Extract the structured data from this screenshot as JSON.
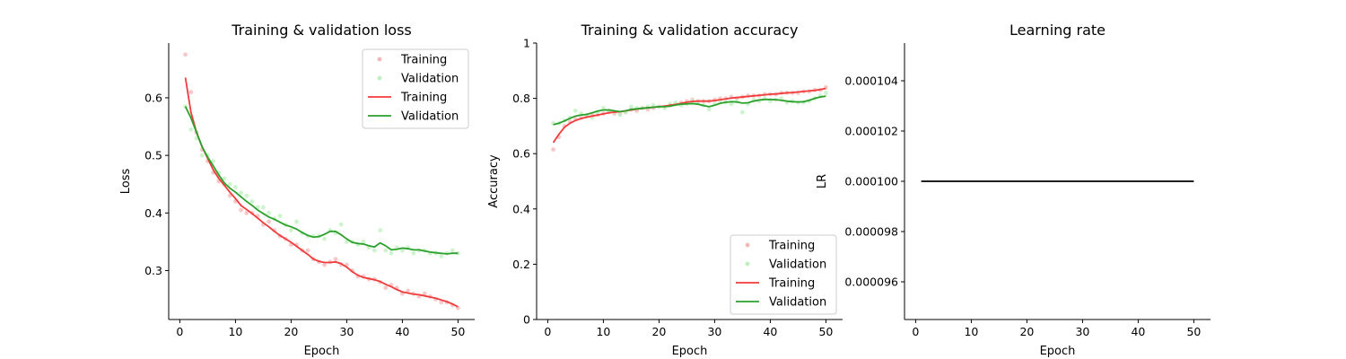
{
  "figure": {
    "colors": {
      "training_marker": "#f4b6b6",
      "validation_marker": "#bdf0bd",
      "training_line": "#f03c3c",
      "validation_line": "#2ca02c",
      "lr_line": "#000000"
    }
  },
  "chart_data": [
    {
      "type": "line",
      "title": "Training & validation loss",
      "xlabel": "Epoch",
      "ylabel": "Loss",
      "xlim": [
        -2,
        53
      ],
      "ylim": [
        0.215,
        0.695
      ],
      "xticks": [
        0,
        10,
        20,
        30,
        40,
        50
      ],
      "yticks": [
        0.3,
        0.4,
        0.5,
        0.6
      ],
      "x": [
        1,
        2,
        3,
        4,
        5,
        6,
        7,
        8,
        9,
        10,
        11,
        12,
        13,
        14,
        15,
        16,
        17,
        18,
        19,
        20,
        21,
        22,
        23,
        24,
        25,
        26,
        27,
        28,
        29,
        30,
        31,
        32,
        33,
        34,
        35,
        36,
        37,
        38,
        39,
        40,
        41,
        42,
        43,
        44,
        45,
        46,
        47,
        48,
        49,
        50
      ],
      "legend": {
        "position": "top-right",
        "entries": [
          {
            "label": "Training",
            "style": "marker",
            "color": "#f4b6b6"
          },
          {
            "label": "Validation",
            "style": "marker",
            "color": "#bdf0bd"
          },
          {
            "label": "Training",
            "style": "line",
            "color": "#f03c3c"
          },
          {
            "label": "Validation",
            "style": "line",
            "color": "#2ca02c"
          }
        ]
      },
      "series": [
        {
          "name": "Training",
          "style": "marker",
          "color": "#f4b6b6",
          "values": [
            0.675,
            0.61,
            0.54,
            0.51,
            0.49,
            0.47,
            0.455,
            0.45,
            0.43,
            0.42,
            0.405,
            0.4,
            0.4,
            0.395,
            0.38,
            0.385,
            0.37,
            0.36,
            0.355,
            0.345,
            0.345,
            0.335,
            0.335,
            0.32,
            0.315,
            0.31,
            0.315,
            0.32,
            0.31,
            0.31,
            0.3,
            0.29,
            0.29,
            0.285,
            0.285,
            0.28,
            0.27,
            0.275,
            0.27,
            0.26,
            0.265,
            0.26,
            0.255,
            0.26,
            0.255,
            0.25,
            0.245,
            0.245,
            0.24,
            0.235
          ]
        },
        {
          "name": "Validation",
          "style": "marker",
          "color": "#bdf0bd",
          "values": [
            0.585,
            0.545,
            0.53,
            0.5,
            0.5,
            0.49,
            0.47,
            0.46,
            0.45,
            0.445,
            0.435,
            0.43,
            0.42,
            0.41,
            0.41,
            0.4,
            0.39,
            0.395,
            0.38,
            0.37,
            0.385,
            0.365,
            0.36,
            0.36,
            0.36,
            0.355,
            0.37,
            0.365,
            0.38,
            0.35,
            0.35,
            0.345,
            0.35,
            0.34,
            0.335,
            0.37,
            0.335,
            0.33,
            0.34,
            0.335,
            0.34,
            0.33,
            0.335,
            0.335,
            0.33,
            0.33,
            0.325,
            0.33,
            0.335,
            0.33
          ]
        },
        {
          "name": "Training",
          "style": "line",
          "color": "#f03c3c",
          "values": [
            0.635,
            0.575,
            0.54,
            0.515,
            0.495,
            0.475,
            0.46,
            0.448,
            0.436,
            0.425,
            0.413,
            0.406,
            0.399,
            0.391,
            0.383,
            0.376,
            0.368,
            0.361,
            0.355,
            0.349,
            0.342,
            0.335,
            0.328,
            0.32,
            0.316,
            0.314,
            0.314,
            0.315,
            0.312,
            0.306,
            0.298,
            0.292,
            0.288,
            0.286,
            0.284,
            0.281,
            0.276,
            0.272,
            0.267,
            0.263,
            0.261,
            0.259,
            0.258,
            0.256,
            0.254,
            0.252,
            0.249,
            0.246,
            0.242,
            0.237
          ]
        },
        {
          "name": "Validation",
          "style": "line",
          "color": "#2ca02c",
          "values": [
            0.585,
            0.565,
            0.54,
            0.515,
            0.497,
            0.482,
            0.466,
            0.452,
            0.443,
            0.436,
            0.428,
            0.42,
            0.413,
            0.405,
            0.399,
            0.393,
            0.389,
            0.384,
            0.379,
            0.376,
            0.372,
            0.366,
            0.361,
            0.358,
            0.359,
            0.363,
            0.368,
            0.368,
            0.362,
            0.355,
            0.349,
            0.347,
            0.346,
            0.343,
            0.341,
            0.348,
            0.343,
            0.336,
            0.337,
            0.339,
            0.338,
            0.336,
            0.336,
            0.334,
            0.332,
            0.331,
            0.33,
            0.329,
            0.33,
            0.33
          ]
        }
      ]
    },
    {
      "type": "line",
      "title": "Training & validation accuracy",
      "xlabel": "Epoch",
      "ylabel": "Accuracy",
      "xlim": [
        -2,
        53
      ],
      "ylim": [
        0.0,
        1.0
      ],
      "xticks": [
        0,
        10,
        20,
        30,
        40,
        50
      ],
      "yticks": [
        0.0,
        0.2,
        0.4,
        0.6,
        0.8,
        1.0
      ],
      "x": [
        1,
        2,
        3,
        4,
        5,
        6,
        7,
        8,
        9,
        10,
        11,
        12,
        13,
        14,
        15,
        16,
        17,
        18,
        19,
        20,
        21,
        22,
        23,
        24,
        25,
        26,
        27,
        28,
        29,
        30,
        31,
        32,
        33,
        34,
        35,
        36,
        37,
        38,
        39,
        40,
        41,
        42,
        43,
        44,
        45,
        46,
        47,
        48,
        49,
        50
      ],
      "legend": {
        "position": "bottom-right",
        "entries": [
          {
            "label": "Training",
            "style": "marker",
            "color": "#f4b6b6"
          },
          {
            "label": "Validation",
            "style": "marker",
            "color": "#bdf0bd"
          },
          {
            "label": "Training",
            "style": "line",
            "color": "#f03c3c"
          },
          {
            "label": "Validation",
            "style": "line",
            "color": "#2ca02c"
          }
        ]
      },
      "series": [
        {
          "name": "Training",
          "style": "marker",
          "color": "#f4b6b6",
          "values": [
            0.615,
            0.66,
            0.7,
            0.715,
            0.725,
            0.73,
            0.735,
            0.74,
            0.74,
            0.745,
            0.75,
            0.745,
            0.745,
            0.75,
            0.76,
            0.755,
            0.765,
            0.76,
            0.765,
            0.77,
            0.77,
            0.775,
            0.78,
            0.785,
            0.79,
            0.795,
            0.79,
            0.79,
            0.79,
            0.795,
            0.8,
            0.8,
            0.805,
            0.8,
            0.805,
            0.81,
            0.81,
            0.81,
            0.815,
            0.815,
            0.815,
            0.82,
            0.82,
            0.82,
            0.82,
            0.825,
            0.825,
            0.83,
            0.83,
            0.84
          ]
        },
        {
          "name": "Validation",
          "style": "marker",
          "color": "#bdf0bd",
          "values": [
            0.71,
            0.71,
            0.72,
            0.73,
            0.755,
            0.745,
            0.74,
            0.73,
            0.75,
            0.765,
            0.755,
            0.75,
            0.74,
            0.75,
            0.77,
            0.765,
            0.765,
            0.77,
            0.775,
            0.77,
            0.765,
            0.78,
            0.785,
            0.775,
            0.78,
            0.79,
            0.785,
            0.775,
            0.76,
            0.78,
            0.79,
            0.785,
            0.78,
            0.79,
            0.75,
            0.78,
            0.795,
            0.79,
            0.8,
            0.79,
            0.795,
            0.8,
            0.785,
            0.79,
            0.785,
            0.785,
            0.79,
            0.8,
            0.81,
            0.82
          ]
        },
        {
          "name": "Training",
          "style": "line",
          "color": "#f03c3c",
          "values": [
            0.64,
            0.67,
            0.695,
            0.71,
            0.72,
            0.727,
            0.732,
            0.736,
            0.74,
            0.744,
            0.748,
            0.75,
            0.752,
            0.755,
            0.758,
            0.761,
            0.764,
            0.766,
            0.768,
            0.77,
            0.772,
            0.775,
            0.778,
            0.782,
            0.786,
            0.789,
            0.79,
            0.79,
            0.79,
            0.792,
            0.795,
            0.798,
            0.801,
            0.803,
            0.805,
            0.807,
            0.809,
            0.811,
            0.813,
            0.815,
            0.816,
            0.818,
            0.82,
            0.821,
            0.823,
            0.825,
            0.827,
            0.829,
            0.832,
            0.836
          ]
        },
        {
          "name": "Validation",
          "style": "line",
          "color": "#2ca02c",
          "values": [
            0.705,
            0.71,
            0.718,
            0.728,
            0.736,
            0.74,
            0.742,
            0.748,
            0.754,
            0.758,
            0.758,
            0.755,
            0.752,
            0.755,
            0.76,
            0.762,
            0.764,
            0.766,
            0.768,
            0.77,
            0.77,
            0.772,
            0.776,
            0.779,
            0.78,
            0.781,
            0.779,
            0.774,
            0.77,
            0.775,
            0.782,
            0.786,
            0.788,
            0.787,
            0.783,
            0.784,
            0.79,
            0.794,
            0.796,
            0.796,
            0.795,
            0.793,
            0.79,
            0.788,
            0.787,
            0.788,
            0.793,
            0.8,
            0.805,
            0.808
          ]
        }
      ]
    },
    {
      "type": "line",
      "title": "Learning rate",
      "xlabel": "Epoch",
      "ylabel": "LR",
      "xlim": [
        -2,
        53
      ],
      "ylim": [
        9.45e-05,
        0.0001055
      ],
      "xticks": [
        0,
        10,
        20,
        30,
        40,
        50
      ],
      "yticks": [
        9.6e-05,
        9.8e-05,
        0.0001,
        0.000102,
        0.000104
      ],
      "ytick_labels": [
        "0.000096",
        "0.000098",
        "0.000100",
        "0.000102",
        "0.000104"
      ],
      "x": [
        1,
        2,
        3,
        4,
        5,
        6,
        7,
        8,
        9,
        10,
        11,
        12,
        13,
        14,
        15,
        16,
        17,
        18,
        19,
        20,
        21,
        22,
        23,
        24,
        25,
        26,
        27,
        28,
        29,
        30,
        31,
        32,
        33,
        34,
        35,
        36,
        37,
        38,
        39,
        40,
        41,
        42,
        43,
        44,
        45,
        46,
        47,
        48,
        49,
        50
      ],
      "series": [
        {
          "name": "",
          "style": "line",
          "color": "#000000",
          "values": [
            0.0001,
            0.0001,
            0.0001,
            0.0001,
            0.0001,
            0.0001,
            0.0001,
            0.0001,
            0.0001,
            0.0001,
            0.0001,
            0.0001,
            0.0001,
            0.0001,
            0.0001,
            0.0001,
            0.0001,
            0.0001,
            0.0001,
            0.0001,
            0.0001,
            0.0001,
            0.0001,
            0.0001,
            0.0001,
            0.0001,
            0.0001,
            0.0001,
            0.0001,
            0.0001,
            0.0001,
            0.0001,
            0.0001,
            0.0001,
            0.0001,
            0.0001,
            0.0001,
            0.0001,
            0.0001,
            0.0001,
            0.0001,
            0.0001,
            0.0001,
            0.0001,
            0.0001,
            0.0001,
            0.0001,
            0.0001,
            0.0001,
            0.0001
          ]
        }
      ]
    }
  ]
}
